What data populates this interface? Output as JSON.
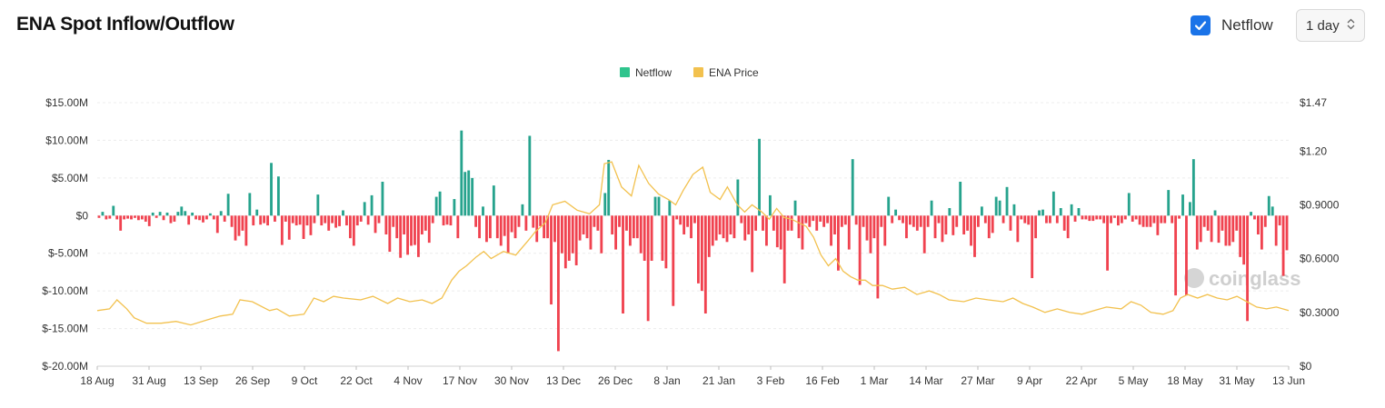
{
  "header": {
    "title": "ENA Spot Inflow/Outflow",
    "netflow_toggle": {
      "label": "Netflow",
      "checked": true
    },
    "interval": {
      "value": "1 day"
    }
  },
  "colors": {
    "positive": "#26a38d",
    "negative": "#f0424f",
    "price": "#f2c14e",
    "legend_netflow": "#2fc48d",
    "checkbox": "#1a73e8"
  },
  "watermark": "coinglass",
  "chart_data": {
    "type": "bar",
    "legend": [
      "Netflow",
      "ENA Price"
    ],
    "legend_position": "top-center",
    "grid": true,
    "x_ticks": [
      "18 Aug",
      "31 Aug",
      "13 Sep",
      "26 Sep",
      "9 Oct",
      "22 Oct",
      "4 Nov",
      "17 Nov",
      "30 Nov",
      "13 Dec",
      "26 Dec",
      "8 Jan",
      "21 Jan",
      "3 Feb",
      "16 Feb",
      "1 Mar",
      "14 Mar",
      "27 Mar",
      "9 Apr",
      "22 Apr",
      "5 May",
      "18 May",
      "31 May",
      "13 Jun"
    ],
    "y_left": {
      "ticks": [
        "$15.00M",
        "$10.00M",
        "$5.00M",
        "$0",
        "$-5.00M",
        "$-10.00M",
        "$-15.00M",
        "$-20.00M"
      ],
      "min": -20,
      "max": 15,
      "unit": "M"
    },
    "y_right": {
      "ticks": [
        "$1.47",
        "$1.20",
        "$0.9000",
        "$0.6000",
        "$0.3000",
        "$0"
      ],
      "min": 0,
      "max": 1.47
    },
    "series": [
      {
        "name": "Netflow",
        "axis": "left",
        "kind": "bar",
        "values": [
          -0.3,
          0.5,
          -0.5,
          -0.4,
          1.3,
          -0.5,
          -2.0,
          -0.5,
          -0.4,
          -0.5,
          -0.3,
          -0.6,
          -0.5,
          -0.8,
          -1.4,
          0.4,
          -0.3,
          0.5,
          -0.6,
          0.4,
          -1.0,
          -0.8,
          0.5,
          1.2,
          0.6,
          -1.2,
          0.4,
          -0.5,
          -0.6,
          -0.9,
          -0.5,
          0.3,
          -0.5,
          -2.3,
          0.6,
          -0.8,
          2.9,
          -1.5,
          -3.3,
          -2.7,
          -2.0,
          -4.0,
          3.0,
          -1.3,
          0.8,
          -1.2,
          -1.0,
          -1.3,
          7.0,
          -0.8,
          5.2,
          -3.9,
          -0.8,
          -3.2,
          -1.0,
          -1.3,
          -1.2,
          -3.1,
          -1.3,
          -2.6,
          -1.0,
          2.8,
          -1.3,
          -1.0,
          -2.0,
          -1.0,
          -1.6,
          -1.4,
          0.7,
          -1.3,
          -3.0,
          -4.0,
          -1.3,
          -0.8,
          1.8,
          -1.2,
          2.7,
          -2.3,
          -1.0,
          4.5,
          -2.5,
          -4.8,
          -1.5,
          -3.0,
          -5.6,
          -2.5,
          -5.2,
          -4.0,
          -3.9,
          -5.5,
          -2.5,
          -2.0,
          -3.6,
          -1.0,
          2.5,
          3.2,
          -1.3,
          -1.2,
          -1.3,
          2.2,
          -3.0,
          11.3,
          5.8,
          6.0,
          5.0,
          -1.5,
          -3.0,
          1.2,
          -3.5,
          -3.0,
          4.0,
          -3.0,
          -4.0,
          -2.7,
          -5.0,
          -2.2,
          -3.0,
          -1.5,
          1.5,
          -2.0,
          10.6,
          -1.6,
          -3.5,
          -1.4,
          -3.0,
          -3.0,
          -11.8,
          -3.5,
          -18.0,
          -5.0,
          -7.0,
          -6.0,
          -5.0,
          -6.6,
          -3.3,
          -2.5,
          -3.0,
          -4.5,
          -1.5,
          -2.0,
          -5.0,
          3.0,
          7.4,
          -2.5,
          -4.5,
          -1.5,
          -13.0,
          -2.0,
          -4.0,
          -3.0,
          -3.0,
          -5.0,
          -6.0,
          -14.0,
          -6.0,
          2.5,
          2.5,
          -6.0,
          -7.0,
          2.0,
          -12.0,
          -0.5,
          -1.2,
          -2.5,
          -1.5,
          -3.0,
          -1.0,
          -9.0,
          -10.0,
          -13.0,
          -5.5,
          -4.0,
          -3.3,
          -2.5,
          -3.0,
          -3.5,
          -2.5,
          -3.0,
          4.8,
          -1.0,
          -3.3,
          -2.5,
          -7.5,
          -2.0,
          10.2,
          -2.0,
          -4.0,
          2.7,
          -2.0,
          -4.2,
          -4.5,
          -9.0,
          -2.0,
          -2.0,
          2.0,
          -3.0,
          -4.5,
          -1.0,
          -1.5,
          -0.7,
          -2.0,
          -0.8,
          -1.5,
          -1.0,
          -4.0,
          -2.5,
          -7.3,
          -1.5,
          -1.2,
          -4.5,
          7.5,
          -1.2,
          -9.2,
          -1.5,
          -3.3,
          -5.0,
          -3.0,
          -11.0,
          -1.5,
          -4.0,
          2.5,
          -1.0,
          0.8,
          -0.6,
          -1.0,
          -3.0,
          -1.2,
          -1.5,
          -2.0,
          -1.5,
          -5.0,
          -1.5,
          2.0,
          -3.0,
          -1.0,
          -3.5,
          -2.5,
          1.0,
          -2.6,
          -1.5,
          4.5,
          -2.5,
          -2.0,
          -4.0,
          -5.5,
          -1.5,
          1.2,
          -1.0,
          -3.0,
          -2.3,
          2.5,
          2.0,
          -1.0,
          3.8,
          -2.0,
          1.5,
          -3.5,
          -0.5,
          -1.0,
          -1.2,
          -8.3,
          -3.0,
          0.7,
          0.8,
          -1.0,
          -1.0,
          3.2,
          -1.0,
          1.0,
          -2.0,
          -3.0,
          1.5,
          -0.8,
          1.0,
          -0.5,
          -0.5,
          -0.7,
          -0.7,
          -0.5,
          -0.5,
          -1.0,
          -7.3,
          -1.0,
          -0.3,
          -1.3,
          -1.0,
          -0.5,
          3.0,
          -0.8,
          -0.5,
          -1.2,
          -1.5,
          -1.5,
          -1.5,
          -1.0,
          -2.6,
          -1.0,
          -1.0,
          3.4,
          -1.0,
          -10.6,
          -0.4,
          2.8,
          -10.6,
          1.8,
          7.5,
          -4.5,
          -3.5,
          -1.5,
          -2.0,
          -3.5,
          0.7,
          -3.6,
          -2.0,
          -4.0,
          -4.0,
          -3.5,
          -2.0,
          -5.5,
          -6.5,
          -14.0,
          0.5,
          -0.5,
          -2.5,
          -4.5,
          -1.5,
          2.6,
          1.2,
          -4.0,
          -1.3,
          -8.0,
          -4.6
        ]
      },
      {
        "name": "ENA Price",
        "axis": "right",
        "kind": "line",
        "points": [
          [
            0,
            0.31
          ],
          [
            5,
            0.32
          ],
          [
            8,
            0.37
          ],
          [
            12,
            0.32
          ],
          [
            15,
            0.27
          ],
          [
            20,
            0.24
          ],
          [
            26,
            0.24
          ],
          [
            32,
            0.25
          ],
          [
            38,
            0.23
          ],
          [
            45,
            0.26
          ],
          [
            50,
            0.28
          ],
          [
            55,
            0.29
          ],
          [
            58,
            0.37
          ],
          [
            63,
            0.36
          ],
          [
            70,
            0.31
          ],
          [
            73,
            0.32
          ],
          [
            78,
            0.28
          ],
          [
            84,
            0.29
          ],
          [
            88,
            0.38
          ],
          [
            92,
            0.36
          ],
          [
            96,
            0.39
          ],
          [
            100,
            0.38
          ],
          [
            107,
            0.37
          ],
          [
            112,
            0.39
          ],
          [
            118,
            0.35
          ],
          [
            122,
            0.38
          ],
          [
            127,
            0.36
          ],
          [
            132,
            0.37
          ],
          [
            136,
            0.35
          ],
          [
            140,
            0.38
          ],
          [
            144,
            0.48
          ],
          [
            147,
            0.53
          ],
          [
            150,
            0.56
          ],
          [
            154,
            0.61
          ],
          [
            157,
            0.64
          ],
          [
            160,
            0.6
          ],
          [
            165,
            0.64
          ],
          [
            170,
            0.62
          ],
          [
            175,
            0.7
          ],
          [
            178,
            0.75
          ],
          [
            182,
            0.8
          ],
          [
            185,
            0.9
          ],
          [
            190,
            0.92
          ],
          [
            195,
            0.87
          ],
          [
            200,
            0.85
          ],
          [
            204,
            0.9
          ],
          [
            206,
            1.13
          ],
          [
            209,
            1.14
          ],
          [
            213,
            1.0
          ],
          [
            217,
            0.95
          ],
          [
            220,
            1.12
          ],
          [
            224,
            1.02
          ],
          [
            228,
            0.96
          ],
          [
            232,
            0.93
          ],
          [
            235,
            0.9
          ],
          [
            238,
            0.98
          ],
          [
            242,
            1.07
          ],
          [
            246,
            1.11
          ],
          [
            249,
            0.97
          ],
          [
            253,
            0.93
          ],
          [
            256,
            1.0
          ],
          [
            260,
            0.9
          ],
          [
            263,
            0.86
          ],
          [
            266,
            0.9
          ],
          [
            270,
            0.86
          ],
          [
            273,
            0.82
          ],
          [
            276,
            0.88
          ],
          [
            279,
            0.83
          ],
          [
            282,
            0.82
          ],
          [
            285,
            0.8
          ],
          [
            288,
            0.78
          ],
          [
            291,
            0.72
          ],
          [
            294,
            0.62
          ],
          [
            297,
            0.56
          ],
          [
            300,
            0.6
          ],
          [
            303,
            0.53
          ],
          [
            306,
            0.5
          ],
          [
            309,
            0.48
          ],
          [
            312,
            0.48
          ],
          [
            315,
            0.45
          ],
          [
            319,
            0.45
          ],
          [
            323,
            0.43
          ],
          [
            328,
            0.44
          ],
          [
            333,
            0.4
          ],
          [
            338,
            0.42
          ],
          [
            342,
            0.4
          ],
          [
            346,
            0.37
          ],
          [
            352,
            0.36
          ],
          [
            357,
            0.38
          ],
          [
            362,
            0.37
          ],
          [
            368,
            0.36
          ],
          [
            372,
            0.38
          ],
          [
            376,
            0.35
          ],
          [
            380,
            0.33
          ],
          [
            385,
            0.3
          ],
          [
            390,
            0.32
          ],
          [
            395,
            0.3
          ],
          [
            400,
            0.29
          ],
          [
            405,
            0.31
          ],
          [
            410,
            0.33
          ],
          [
            416,
            0.32
          ],
          [
            420,
            0.36
          ],
          [
            424,
            0.34
          ],
          [
            428,
            0.3
          ],
          [
            433,
            0.29
          ],
          [
            437,
            0.31
          ],
          [
            440,
            0.38
          ],
          [
            443,
            0.4
          ],
          [
            447,
            0.38
          ],
          [
            451,
            0.4
          ],
          [
            455,
            0.38
          ],
          [
            459,
            0.37
          ],
          [
            463,
            0.39
          ],
          [
            467,
            0.36
          ],
          [
            471,
            0.33
          ],
          [
            475,
            0.32
          ],
          [
            479,
            0.33
          ],
          [
            484,
            0.31
          ]
        ]
      }
    ]
  }
}
